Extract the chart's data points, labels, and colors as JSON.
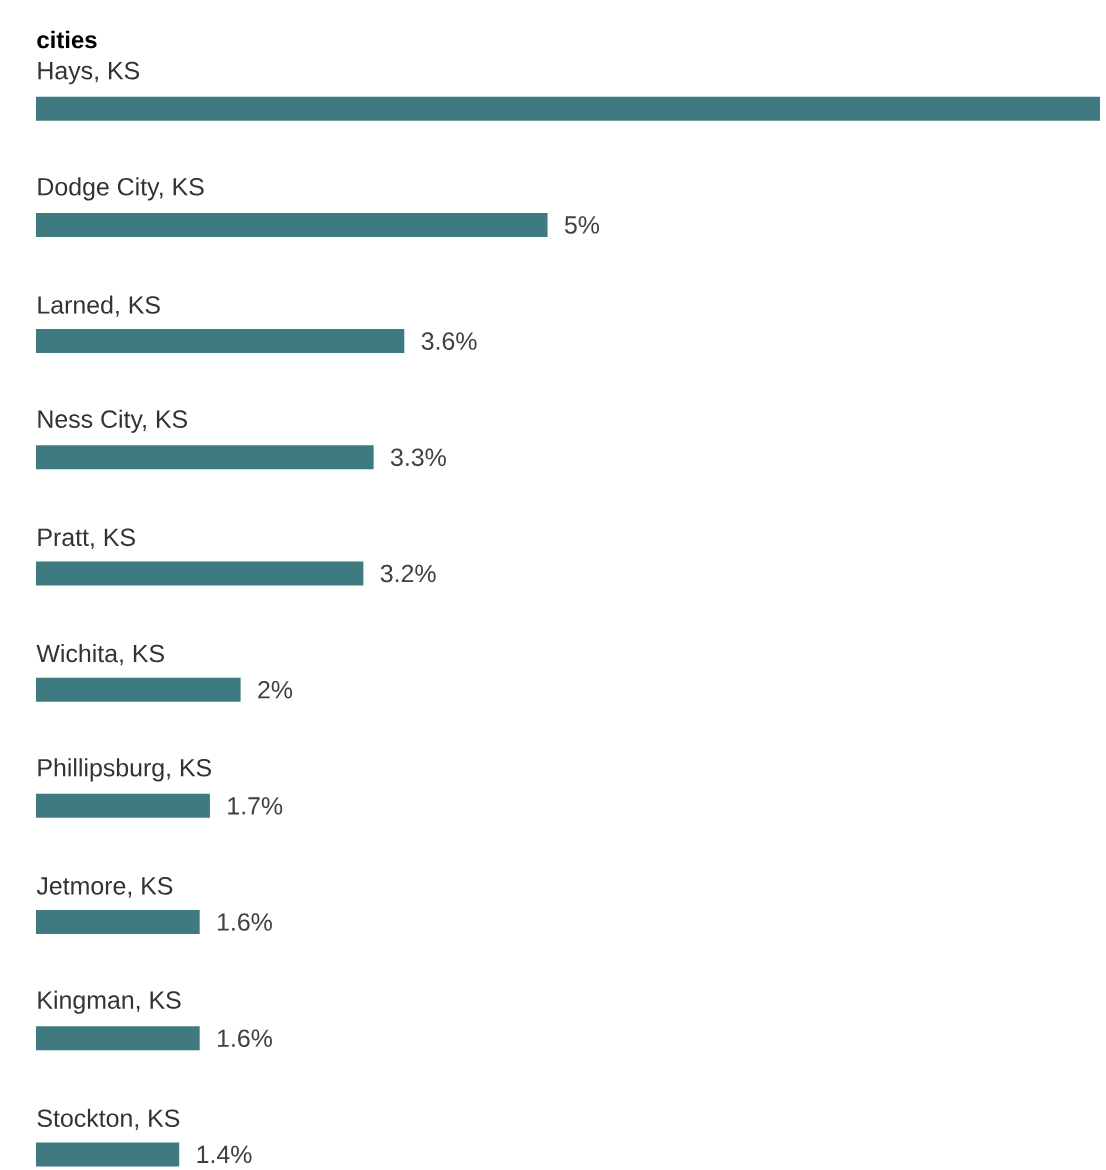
{
  "chart_data": {
    "type": "bar",
    "orientation": "horizontal",
    "title": "cities",
    "categories": [
      "Hays, KS",
      "Dodge City, KS",
      "Larned, KS",
      "Ness City, KS",
      "Pratt, KS",
      "Wichita, KS",
      "Phillipsburg, KS",
      "Jetmore, KS",
      "Kingman, KS",
      "Stockton, KS"
    ],
    "values": [
      10.4,
      5,
      3.6,
      3.3,
      3.2,
      2,
      1.7,
      1.6,
      1.6,
      1.4
    ],
    "value_labels": [
      null,
      "5%",
      "3.6%",
      "3.3%",
      "3.2%",
      "2%",
      "1.7%",
      "1.6%",
      "1.6%",
      "1.4%"
    ],
    "color": "#3f7a80"
  }
}
